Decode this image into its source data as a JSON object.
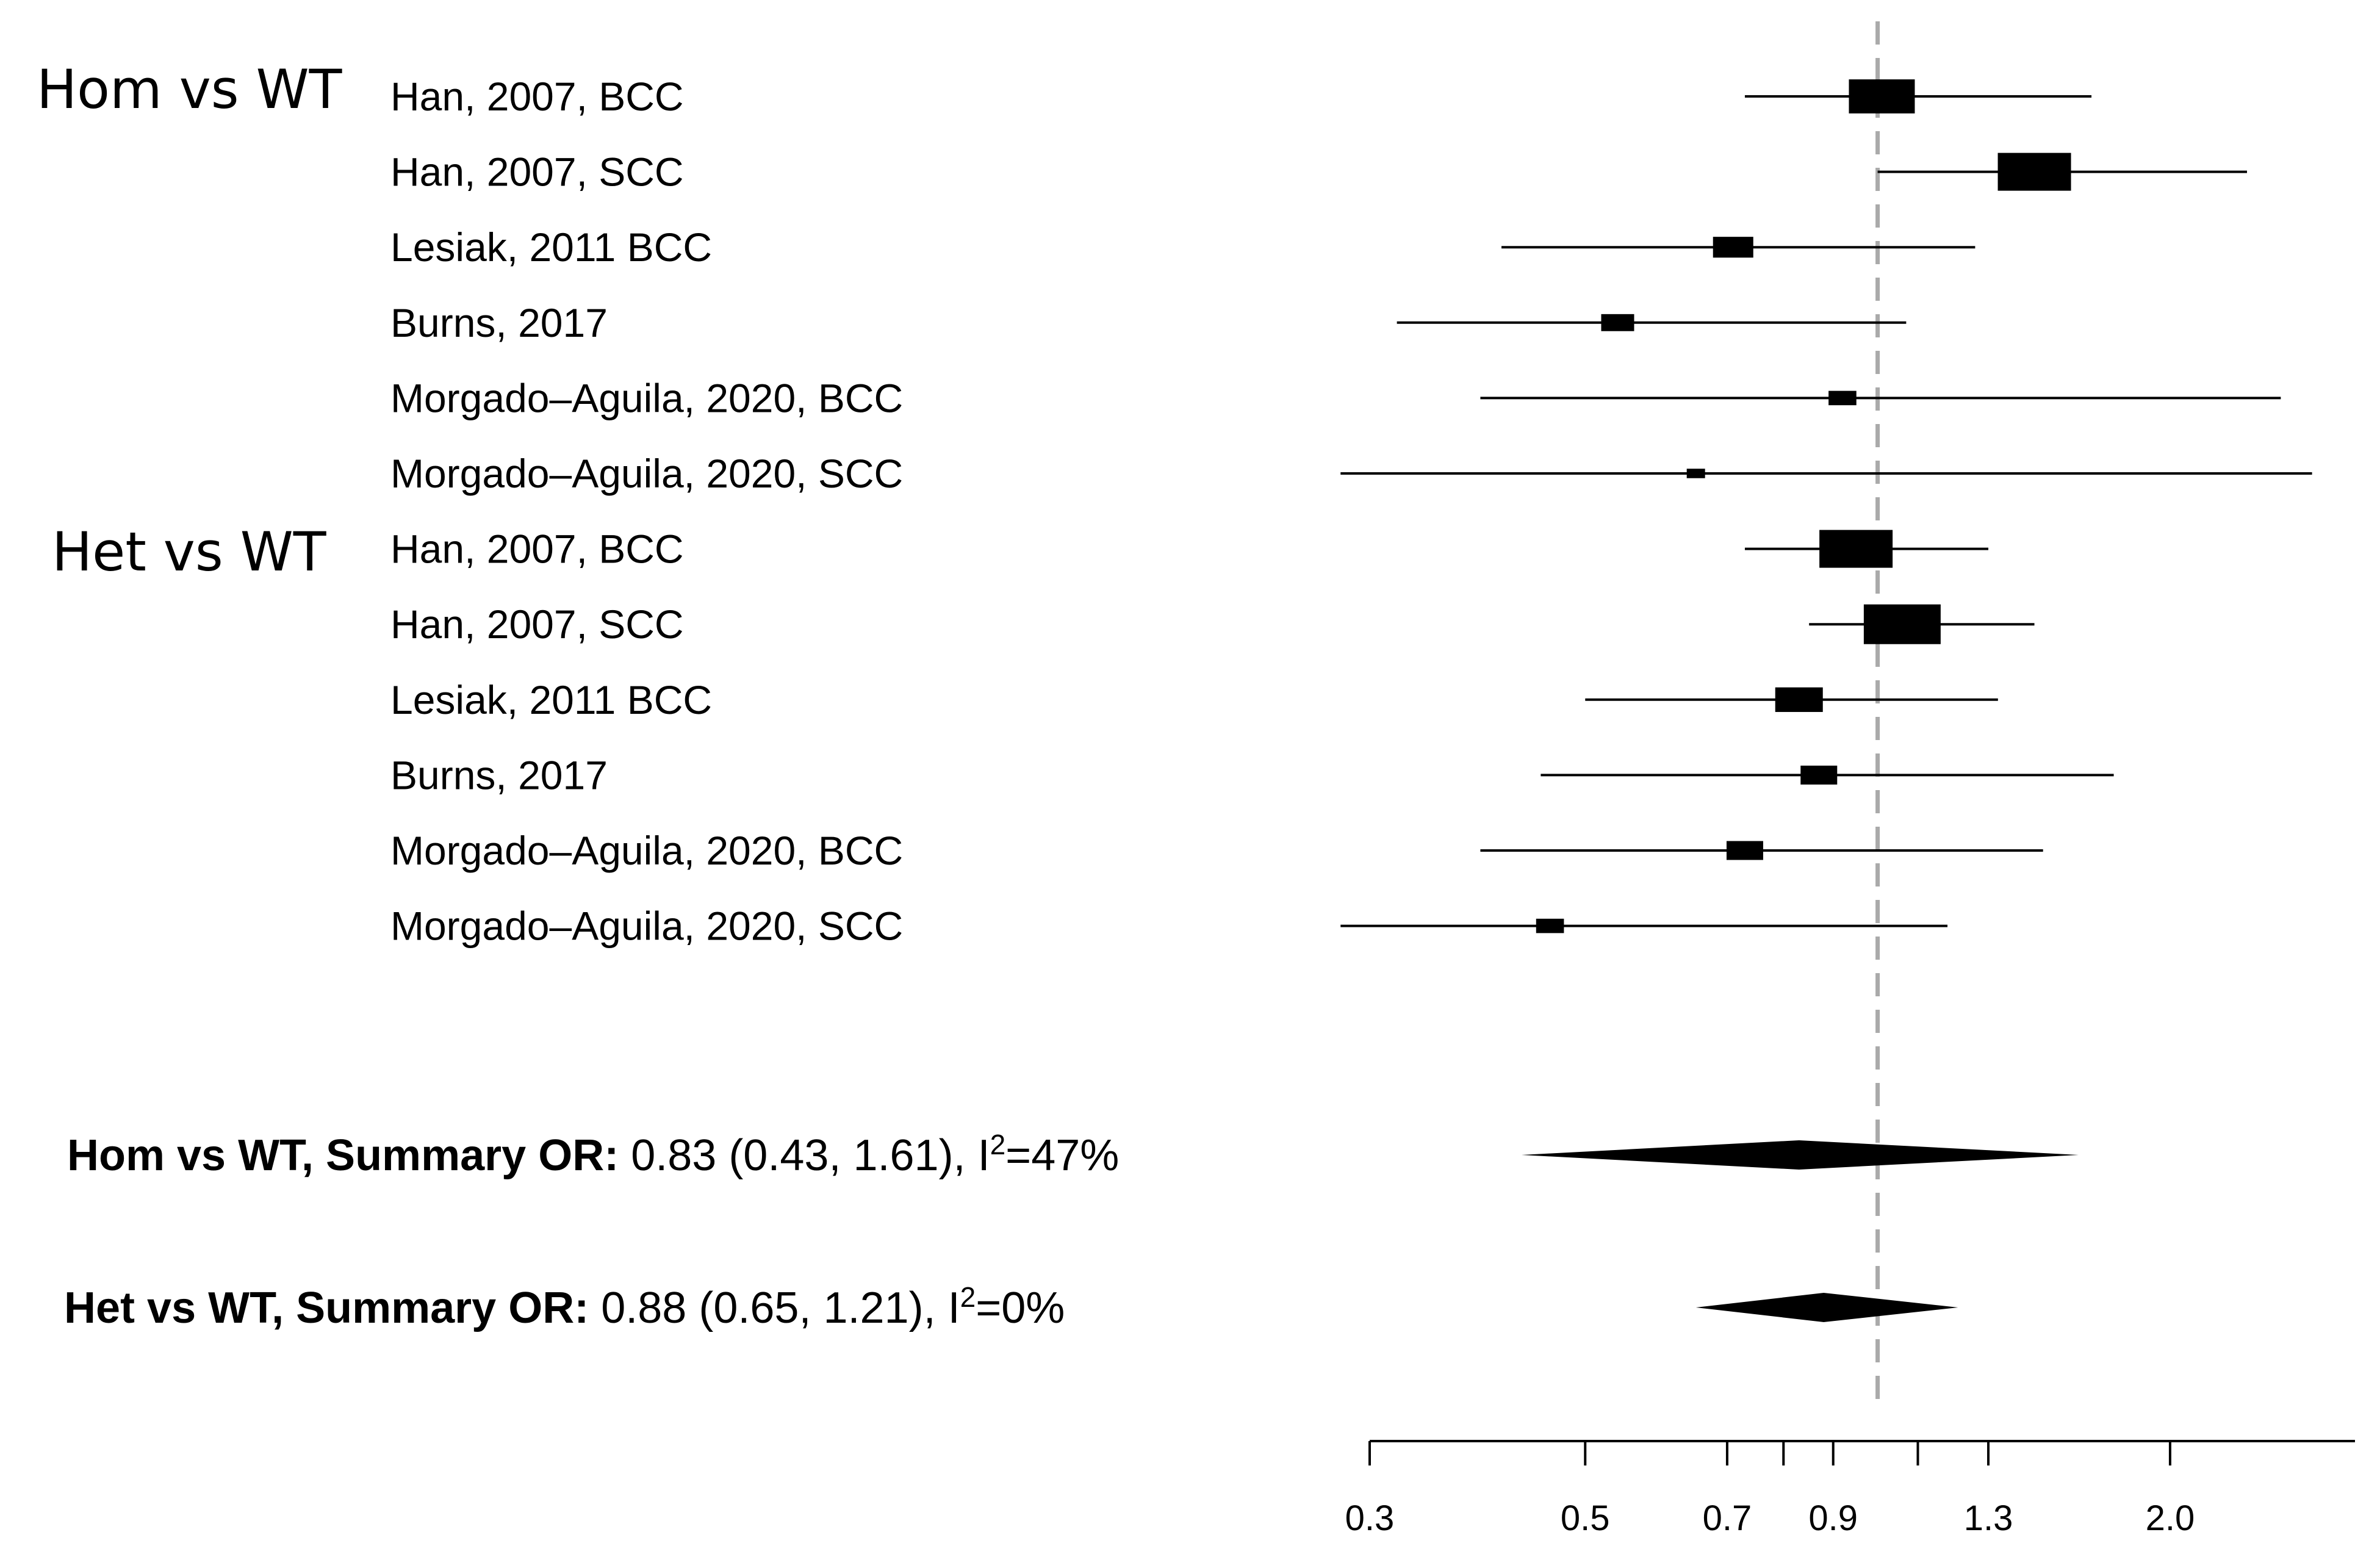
{
  "chart_data": {
    "type": "forest",
    "scale": "log",
    "reference_line": 1.0,
    "xlim": [
      0.3,
      3.1
    ],
    "ticks": [
      0.3,
      0.5,
      0.7,
      0.8,
      0.9,
      1.1,
      1.3,
      2.0
    ],
    "tick_labels": [
      {
        "value": 0.3,
        "label": "0.3"
      },
      {
        "value": 0.5,
        "label": "0.5"
      },
      {
        "value": 0.7,
        "label": "0.7"
      },
      {
        "value": 0.9,
        "label": "0.9"
      },
      {
        "value": 1.3,
        "label": "1.3"
      },
      {
        "value": 2.0,
        "label": "2.0"
      }
    ],
    "groups": [
      {
        "label": "Hom vs WT",
        "studies": [
          {
            "label": "Han, 2007, BCC",
            "or": 1.01,
            "lo": 0.73,
            "hi": 1.66,
            "weight": 0.9
          },
          {
            "label": "Han, 2007, SCC",
            "or": 1.45,
            "lo": 1.0,
            "hi": 2.4,
            "weight": 1.0
          },
          {
            "label": "Lesiak, 2011 BCC",
            "or": 0.71,
            "lo": 0.41,
            "hi": 1.26,
            "weight": 0.55
          },
          {
            "label": "Burns, 2017",
            "or": 0.54,
            "lo": 0.32,
            "hi": 1.07,
            "weight": 0.45
          },
          {
            "label": "Morgado–Aguila, 2020, BCC",
            "or": 0.92,
            "lo": 0.39,
            "hi": 2.6,
            "weight": 0.38
          },
          {
            "label": "Morgado–Aguila, 2020, SCC",
            "or": 0.65,
            "lo": 0.28,
            "hi": 2.8,
            "weight": 0.25
          }
        ]
      },
      {
        "label": "Het vs WT",
        "studies": [
          {
            "label": "Han, 2007, BCC",
            "or": 0.95,
            "lo": 0.73,
            "hi": 1.3,
            "weight": 1.0
          },
          {
            "label": "Han, 2007, SCC",
            "or": 1.06,
            "lo": 0.85,
            "hi": 1.45,
            "weight": 1.05
          },
          {
            "label": "Lesiak, 2011 BCC",
            "or": 0.83,
            "lo": 0.5,
            "hi": 1.33,
            "weight": 0.65
          },
          {
            "label": "Burns, 2017",
            "or": 0.87,
            "lo": 0.45,
            "hi": 1.75,
            "weight": 0.5
          },
          {
            "label": "Morgado–Aguila, 2020, BCC",
            "or": 0.73,
            "lo": 0.39,
            "hi": 1.48,
            "weight": 0.5
          },
          {
            "label": "Morgado–Aguila, 2020, SCC",
            "or": 0.46,
            "lo": 0.28,
            "hi": 1.18,
            "weight": 0.38
          }
        ]
      }
    ],
    "summaries": [
      {
        "label_bold": "Hom vs WT, Summary OR:",
        "label_value": " 0.83 (0.43, 1.61), I",
        "sup": "2",
        "label_tail": "=47%",
        "or": 0.83,
        "lo": 0.43,
        "hi": 1.61
      },
      {
        "label_bold": "Het vs WT, Summary OR:",
        "label_value": " 0.88 (0.65, 1.21), I",
        "sup": "2",
        "label_tail": "=0%",
        "or": 0.88,
        "lo": 0.65,
        "hi": 1.21
      }
    ],
    "colors": {
      "ink": "#000000",
      "reference": "#aaaaaa"
    }
  }
}
